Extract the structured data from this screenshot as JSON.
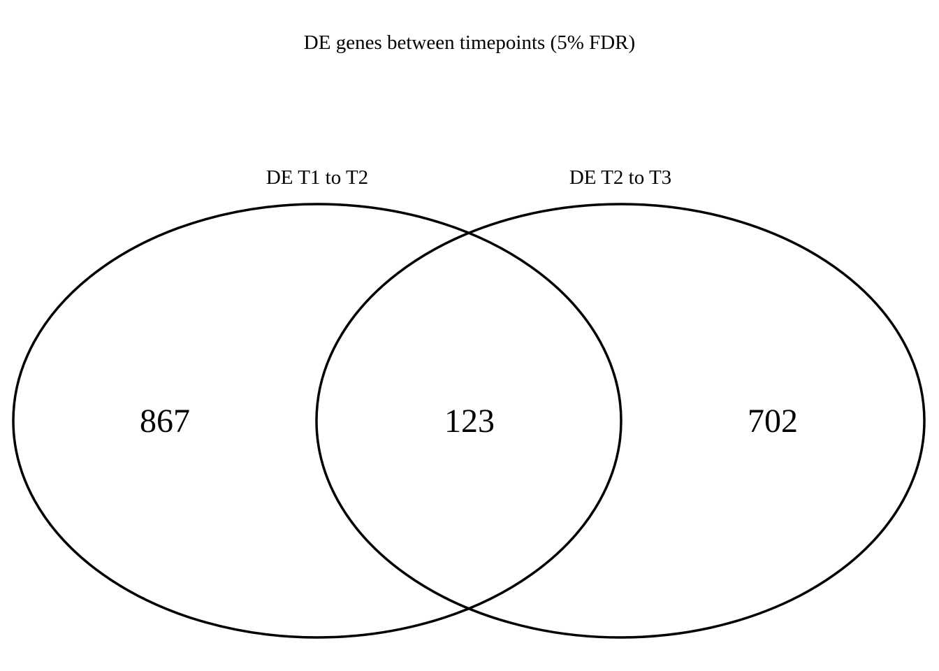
{
  "title": "DE genes between timepoints (5% FDR)",
  "sets": [
    {
      "label": "DE T1 to T2",
      "unique_count": "867"
    },
    {
      "label": "DE T2 to T3",
      "unique_count": "702"
    }
  ],
  "intersection_count": "123",
  "colors": {
    "stroke": "#000000",
    "background": "#ffffff",
    "text": "#000000"
  }
}
